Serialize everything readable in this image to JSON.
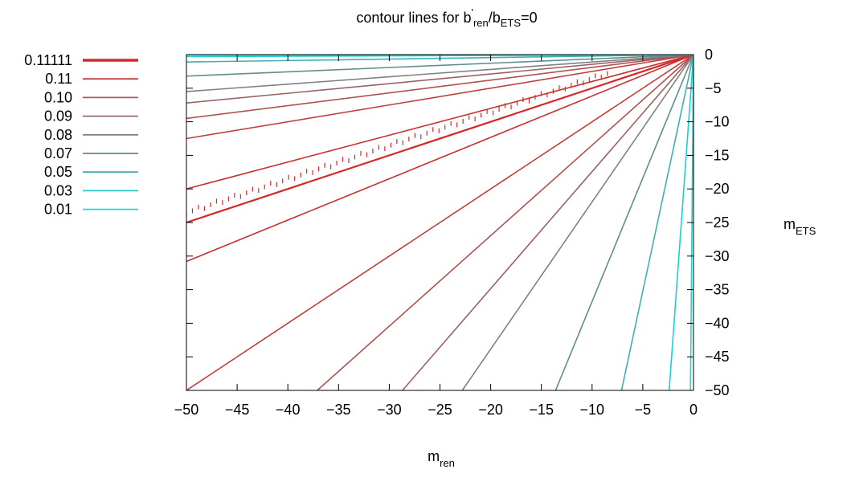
{
  "chart_data": {
    "type": "line",
    "title_parts": [
      "contour lines for b",
      "'",
      "ren",
      "/b",
      "ETS",
      "=0"
    ],
    "xlabel_parts": [
      "m",
      "ren"
    ],
    "ylabel_parts": [
      "m",
      "ETS"
    ],
    "xlim": [
      -50,
      0
    ],
    "ylim": [
      -50,
      0
    ],
    "x_ticks": [
      "−50",
      "−45",
      "−40",
      "−35",
      "−30",
      "−25",
      "−20",
      "−15",
      "−10",
      "−5",
      "0"
    ],
    "y_ticks": [
      "0",
      "−5",
      "−10",
      "−15",
      "−20",
      "−25",
      "−30",
      "−35",
      "−40",
      "−45",
      "−50"
    ],
    "y_axis_side": "right",
    "grid": false,
    "legend_position": "top-left",
    "legend": [
      {
        "label": "0.11111",
        "color": "#d62728",
        "emphasis": true
      },
      {
        "label": "0.11",
        "color": "#c4403e"
      },
      {
        "label": "0.10",
        "color": "#b0585a"
      },
      {
        "label": "0.09",
        "color": "#9a6a6a"
      },
      {
        "label": "0.08",
        "color": "#808080"
      },
      {
        "label": "0.07",
        "color": "#5f8e8e"
      },
      {
        "label": "0.05",
        "color": "#45aaaa"
      },
      {
        "label": "0.03",
        "color": "#2ac4c4"
      },
      {
        "label": "0.01",
        "color": "#1ad8d8"
      }
    ],
    "series": [
      {
        "color": "#d62728",
        "x": [
          0,
          -50
        ],
        "y": [
          0,
          -25
        ],
        "dotted": true,
        "dotted_x_range": [
          -50,
          -8.5
        ]
      },
      {
        "color": "#c8302e",
        "x": [
          0,
          -50
        ],
        "y": [
          0,
          -20
        ]
      },
      {
        "color": "#c8302e",
        "x": [
          0,
          -50
        ],
        "y": [
          0,
          -30.8
        ]
      },
      {
        "color": "#c0403e",
        "x": [
          0,
          -50
        ],
        "y": [
          0,
          -12.5
        ]
      },
      {
        "color": "#c0403e",
        "x": [
          0,
          -50
        ],
        "y": [
          0,
          -50
        ]
      },
      {
        "color": "#b05050",
        "x": [
          0,
          -50
        ],
        "y": [
          0,
          -9.5
        ]
      },
      {
        "color": "#b05050",
        "x": [
          0,
          -37.1
        ],
        "y": [
          0,
          -50
        ]
      },
      {
        "color": "#9a6262",
        "x": [
          0,
          -50
        ],
        "y": [
          0,
          -7.2
        ]
      },
      {
        "color": "#9a6262",
        "x": [
          0,
          -28.7
        ],
        "y": [
          0,
          -50
        ]
      },
      {
        "color": "#808080",
        "x": [
          0,
          -50
        ],
        "y": [
          0,
          -5.5
        ]
      },
      {
        "color": "#808080",
        "x": [
          0,
          -22.8
        ],
        "y": [
          0,
          -50
        ]
      },
      {
        "color": "#5f8e8e",
        "x": [
          0,
          -50
        ],
        "y": [
          0,
          -3.2
        ]
      },
      {
        "color": "#5f8e8e",
        "x": [
          0,
          -13.6
        ],
        "y": [
          0,
          -50
        ]
      },
      {
        "color": "#3fb0b0",
        "x": [
          0,
          -50
        ],
        "y": [
          0,
          -1.1
        ]
      },
      {
        "color": "#3fb0b0",
        "x": [
          0,
          -7.1
        ],
        "y": [
          0,
          -50
        ]
      },
      {
        "color": "#1ad0d0",
        "x": [
          0,
          -50
        ],
        "y": [
          0,
          -0.3
        ]
      },
      {
        "color": "#1ad0d0",
        "x": [
          0,
          -2.4
        ],
        "y": [
          0,
          -50
        ]
      },
      {
        "color": "#1ad8d8",
        "x": [
          0,
          -50
        ],
        "y": [
          0,
          -0.05
        ]
      },
      {
        "color": "#1ad8d8",
        "x": [
          0,
          -0.3
        ],
        "y": [
          0,
          -50
        ]
      }
    ]
  }
}
